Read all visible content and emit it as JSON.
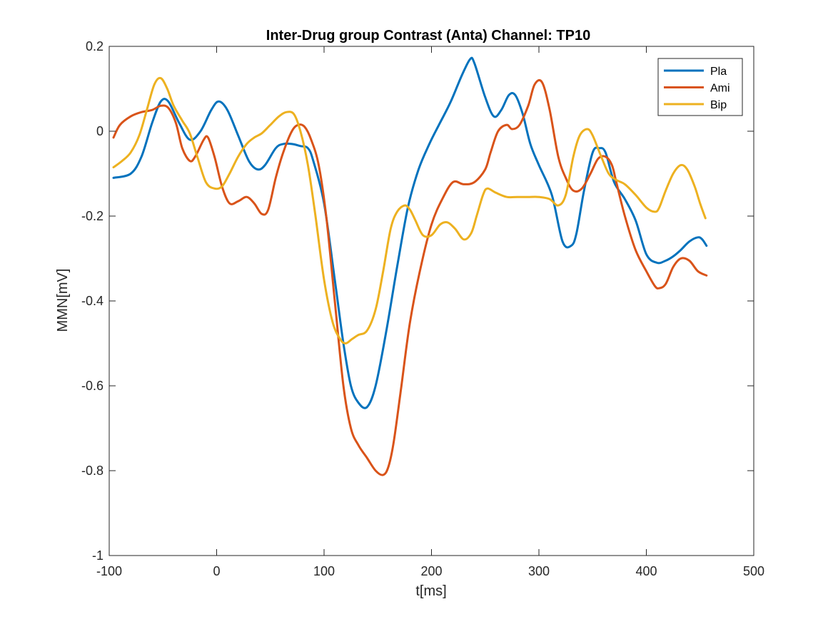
{
  "chart_data": {
    "type": "line",
    "title": "Inter-Drug group Contrast (Anta) Channel: TP10",
    "xlabel": "t[ms]",
    "ylabel": "MMN[mV]",
    "xlim": [
      -100,
      500
    ],
    "ylim": [
      -1,
      0.2
    ],
    "xticks": [
      -100,
      0,
      100,
      200,
      300,
      400,
      500
    ],
    "yticks": [
      -1,
      -0.8,
      -0.6,
      -0.4,
      -0.2,
      0,
      0.2
    ],
    "xtick_labels": [
      "-100",
      "0",
      "100",
      "200",
      "300",
      "400",
      "500"
    ],
    "ytick_labels": [
      "-1",
      "-0.8",
      "-0.6",
      "-0.4",
      "-0.2",
      "0",
      "0.2"
    ],
    "grid": false,
    "legend_position": "top-right",
    "series": [
      {
        "name": "Pla",
        "color": "#0072BD",
        "x": [
          -96,
          -80,
          -70,
          -60,
          -52,
          -45,
          -35,
          -25,
          -15,
          -5,
          2,
          10,
          20,
          30,
          38,
          45,
          55,
          62,
          70,
          78,
          85,
          90,
          100,
          110,
          118,
          125,
          132,
          140,
          148,
          158,
          168,
          178,
          188,
          198,
          208,
          218,
          228,
          236,
          240,
          250,
          258,
          265,
          272,
          278,
          285,
          292,
          300,
          312,
          322,
          330,
          335,
          342,
          350,
          356,
          362,
          370,
          380,
          390,
          400,
          410,
          418,
          425,
          432,
          440,
          448,
          452,
          456
        ],
        "y": [
          -0.11,
          -0.1,
          -0.06,
          0.02,
          0.07,
          0.07,
          0.02,
          -0.02,
          0.0,
          0.05,
          0.07,
          0.05,
          -0.01,
          -0.07,
          -0.09,
          -0.08,
          -0.04,
          -0.03,
          -0.03,
          -0.035,
          -0.04,
          -0.07,
          -0.17,
          -0.35,
          -0.5,
          -0.6,
          -0.64,
          -0.65,
          -0.6,
          -0.47,
          -0.32,
          -0.18,
          -0.09,
          -0.03,
          0.02,
          0.07,
          0.13,
          0.17,
          0.16,
          0.08,
          0.035,
          0.05,
          0.085,
          0.085,
          0.04,
          -0.03,
          -0.08,
          -0.15,
          -0.26,
          -0.27,
          -0.24,
          -0.14,
          -0.05,
          -0.04,
          -0.05,
          -0.12,
          -0.16,
          -0.21,
          -0.29,
          -0.31,
          -0.305,
          -0.295,
          -0.28,
          -0.26,
          -0.25,
          -0.255,
          -0.27
        ]
      },
      {
        "name": "Ami",
        "color": "#D95319",
        "x": [
          -96,
          -90,
          -80,
          -70,
          -60,
          -52,
          -45,
          -38,
          -32,
          -25,
          -20,
          -12,
          -8,
          -2,
          5,
          12,
          20,
          28,
          35,
          42,
          48,
          55,
          62,
          70,
          76,
          82,
          88,
          95,
          102,
          110,
          118,
          125,
          132,
          140,
          148,
          155,
          160,
          165,
          172,
          180,
          190,
          200,
          210,
          220,
          230,
          240,
          250,
          255,
          262,
          270,
          275,
          282,
          290,
          296,
          303,
          310,
          318,
          325,
          332,
          340,
          348,
          355,
          362,
          368,
          372,
          380,
          390,
          400,
          408,
          412,
          418,
          425,
          432,
          440,
          448,
          456
        ],
        "y": [
          -0.015,
          0.015,
          0.035,
          0.045,
          0.05,
          0.06,
          0.055,
          0.02,
          -0.04,
          -0.07,
          -0.06,
          -0.02,
          -0.015,
          -0.06,
          -0.13,
          -0.17,
          -0.165,
          -0.155,
          -0.17,
          -0.195,
          -0.185,
          -0.11,
          -0.05,
          0.0,
          0.015,
          0.01,
          -0.02,
          -0.08,
          -0.2,
          -0.4,
          -0.6,
          -0.7,
          -0.74,
          -0.77,
          -0.8,
          -0.81,
          -0.79,
          -0.73,
          -0.6,
          -0.45,
          -0.32,
          -0.22,
          -0.16,
          -0.12,
          -0.125,
          -0.12,
          -0.09,
          -0.05,
          0.0,
          0.015,
          0.005,
          0.015,
          0.06,
          0.11,
          0.115,
          0.05,
          -0.06,
          -0.11,
          -0.14,
          -0.135,
          -0.1,
          -0.065,
          -0.06,
          -0.08,
          -0.12,
          -0.2,
          -0.28,
          -0.33,
          -0.365,
          -0.37,
          -0.36,
          -0.32,
          -0.3,
          -0.305,
          -0.33,
          -0.34
        ]
      },
      {
        "name": "Bip",
        "color": "#EDB120",
        "x": [
          -96,
          -88,
          -80,
          -72,
          -65,
          -58,
          -52,
          -46,
          -40,
          -32,
          -25,
          -18,
          -10,
          -2,
          5,
          12,
          20,
          28,
          35,
          42,
          50,
          58,
          65,
          72,
          78,
          85,
          92,
          100,
          108,
          115,
          120,
          126,
          132,
          140,
          148,
          155,
          162,
          168,
          175,
          180,
          185,
          192,
          200,
          208,
          215,
          222,
          230,
          237,
          242,
          248,
          252,
          260,
          270,
          280,
          290,
          300,
          310,
          318,
          325,
          332,
          338,
          345,
          350,
          358,
          365,
          372,
          380,
          390,
          400,
          408,
          412,
          418,
          425,
          432,
          438,
          445,
          450,
          455
        ],
        "y": [
          -0.085,
          -0.07,
          -0.05,
          -0.01,
          0.05,
          0.11,
          0.125,
          0.1,
          0.06,
          0.025,
          -0.005,
          -0.06,
          -0.12,
          -0.135,
          -0.13,
          -0.1,
          -0.06,
          -0.03,
          -0.015,
          -0.005,
          0.015,
          0.035,
          0.045,
          0.04,
          0.0,
          -0.08,
          -0.2,
          -0.35,
          -0.45,
          -0.49,
          -0.5,
          -0.49,
          -0.48,
          -0.47,
          -0.42,
          -0.33,
          -0.23,
          -0.19,
          -0.175,
          -0.185,
          -0.21,
          -0.245,
          -0.245,
          -0.22,
          -0.215,
          -0.23,
          -0.255,
          -0.24,
          -0.2,
          -0.15,
          -0.135,
          -0.145,
          -0.155,
          -0.155,
          -0.155,
          -0.155,
          -0.16,
          -0.175,
          -0.15,
          -0.06,
          -0.01,
          0.005,
          -0.01,
          -0.06,
          -0.1,
          -0.115,
          -0.125,
          -0.15,
          -0.18,
          -0.19,
          -0.18,
          -0.14,
          -0.1,
          -0.08,
          -0.09,
          -0.13,
          -0.17,
          -0.205
        ]
      }
    ]
  }
}
